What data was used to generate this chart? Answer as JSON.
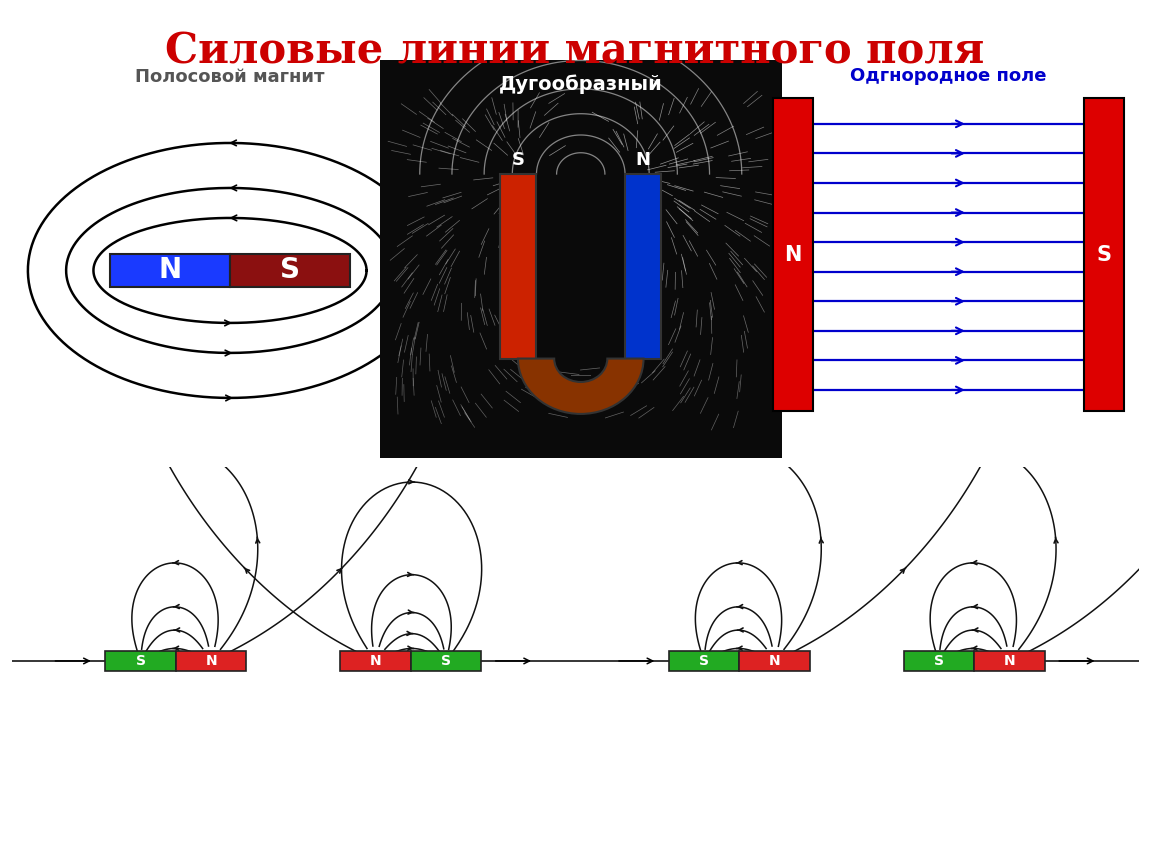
{
  "title": "Силовые линии магнитного поля",
  "title_color": "#cc0000",
  "title_fontsize": 30,
  "bg_color": "#ffffff",
  "panel1_label": "Полосовой магнит",
  "panel1_label_color": "#555555",
  "panel2_label": "Дугообразный",
  "panel2_label_color": "#ffffff",
  "panel3_label": "Одгнородное поле",
  "panel3_label_color": "#0000cc",
  "N_color_blue": "#1a3aff",
  "S_color_dark": "#8b1010",
  "line_color": "#111111",
  "arrow_color": "#0000cc",
  "red_plate": "#dd0000",
  "green_pole": "#22aa22",
  "red_pole": "#dd2222",
  "dark_bg": "#0a0a0a"
}
